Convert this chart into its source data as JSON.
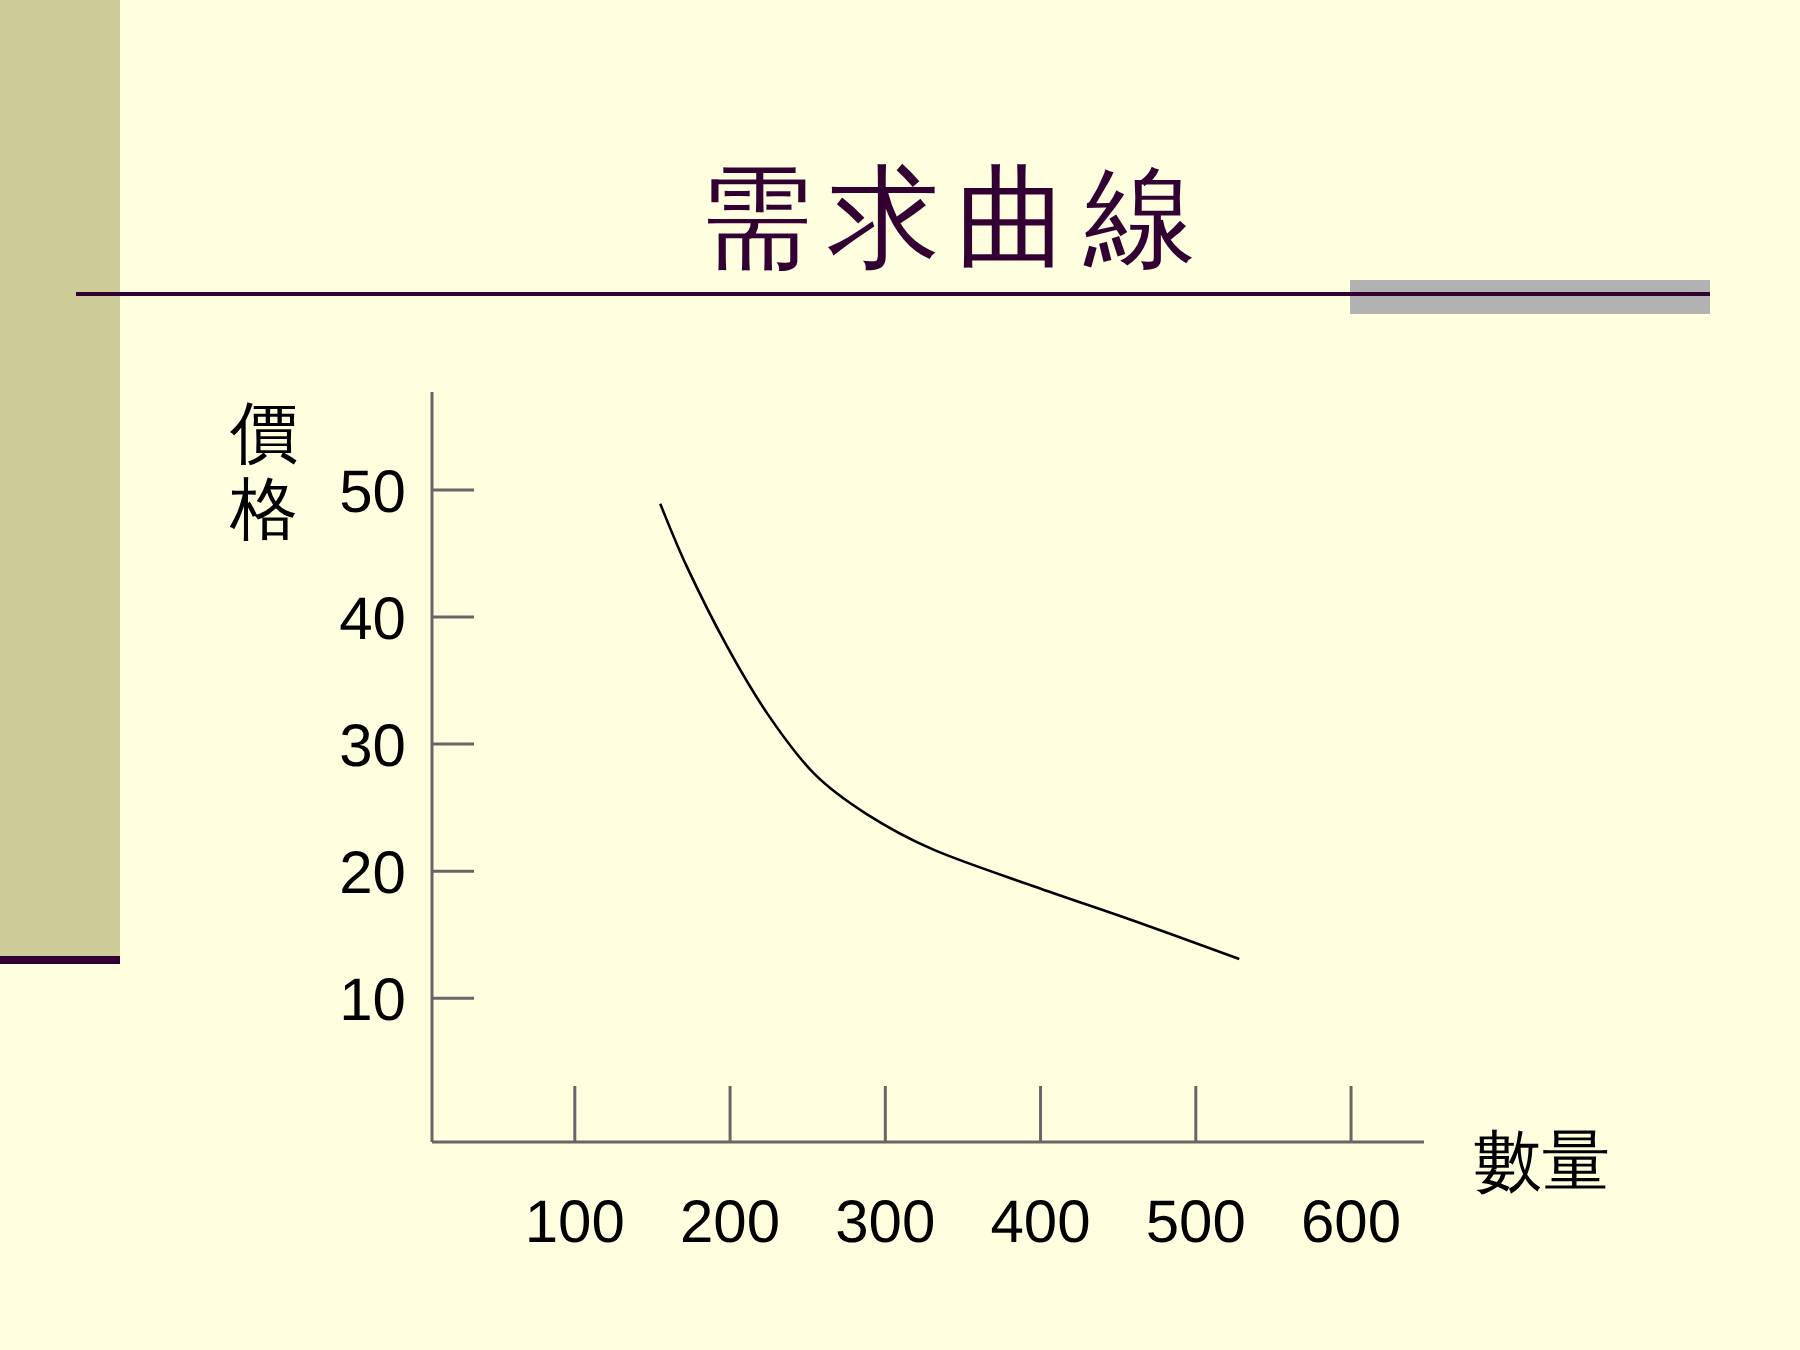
{
  "chart_data": {
    "type": "line",
    "title": "需求曲線",
    "xlabel": "數量",
    "ylabel": "價格",
    "x": [
      155,
      172,
      198,
      224,
      254,
      288,
      331,
      396,
      460,
      528
    ],
    "values": [
      48.9,
      44.0,
      37.7,
      32.4,
      27.7,
      24.5,
      21.7,
      18.8,
      16.1,
      13.1
    ],
    "color": "#000000",
    "xlim": [
      8,
      647
    ],
    "ylim": [
      -1.3,
      57.7
    ],
    "xticks": [
      100,
      200,
      300,
      400,
      500,
      600
    ],
    "yticks": [
      10,
      20,
      30,
      40,
      50
    ],
    "grid": false
  }
}
